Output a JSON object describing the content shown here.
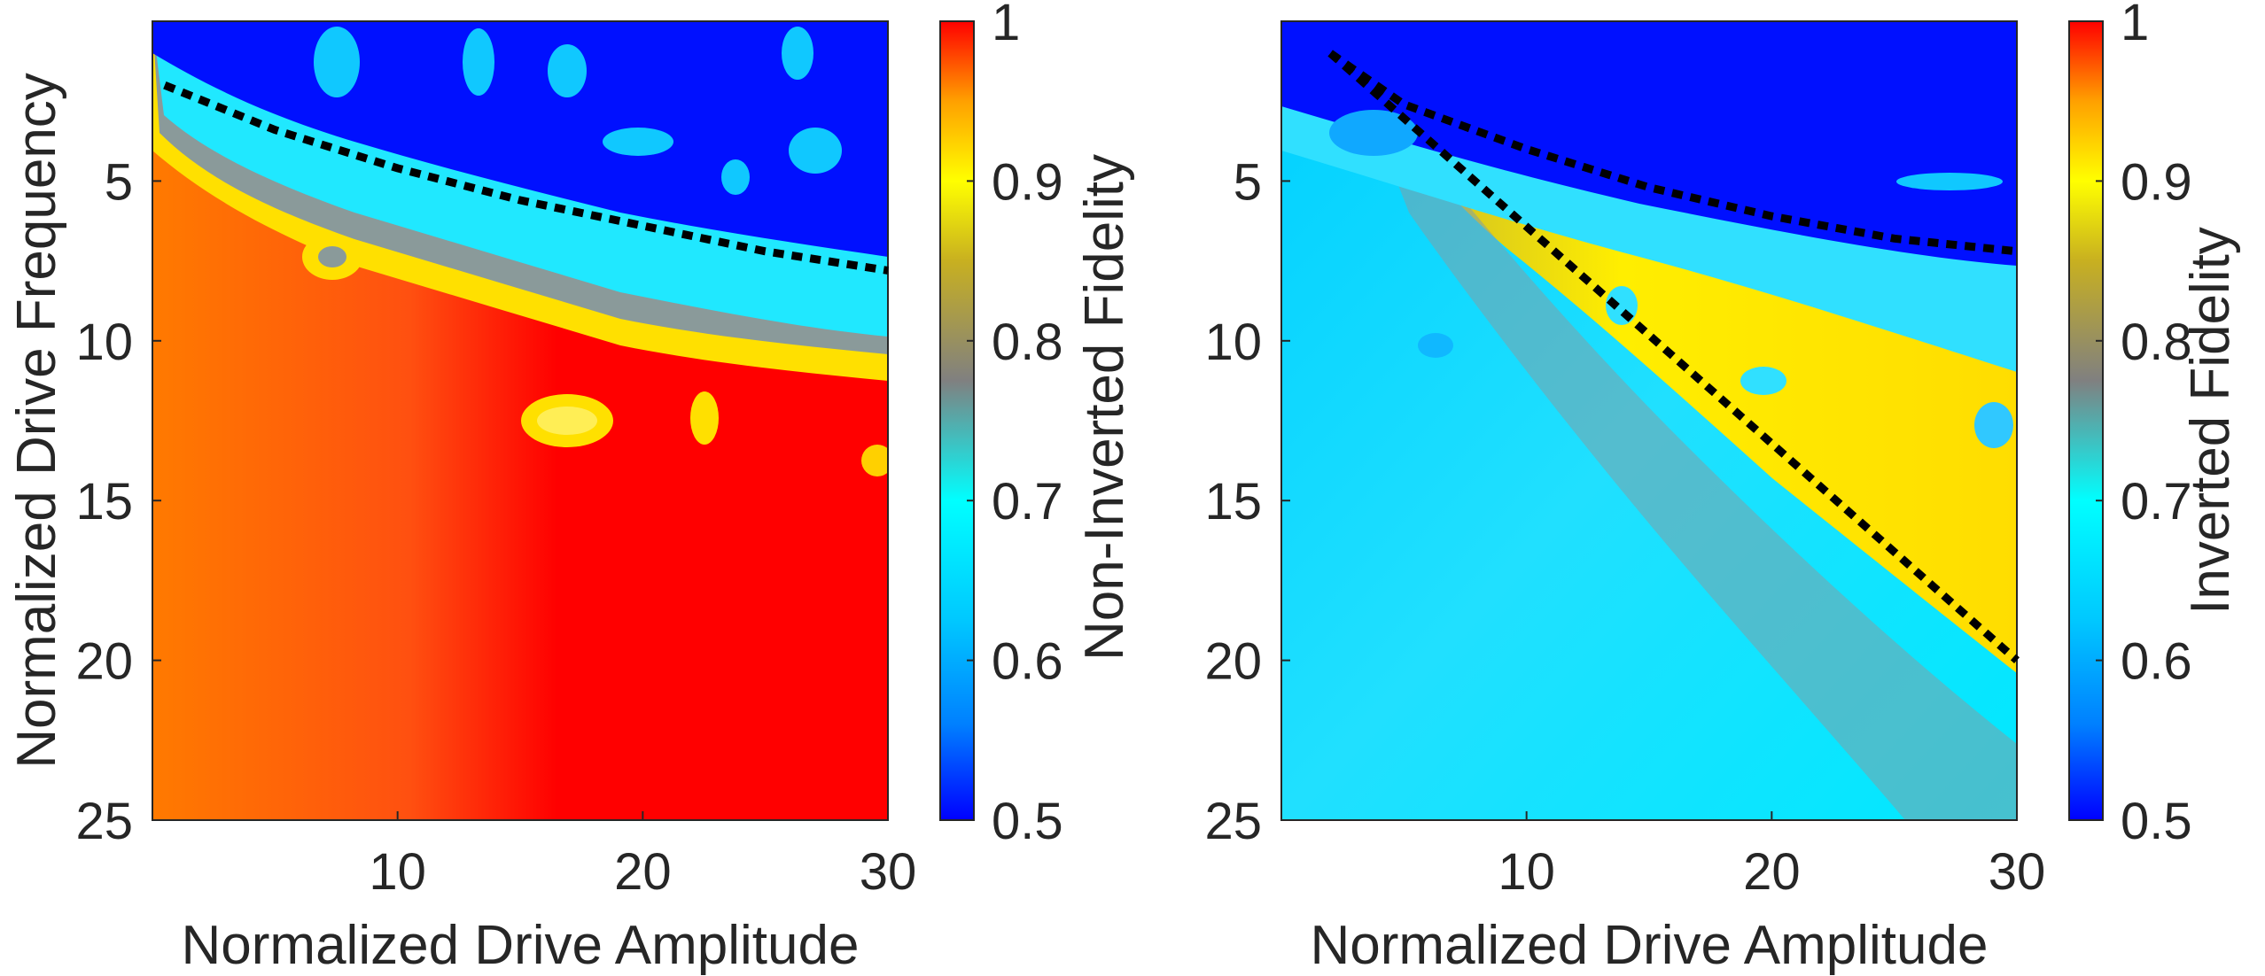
{
  "chart_data": [
    {
      "type": "heatmap",
      "title": "",
      "xlabel": "Normalized Drive Amplitude",
      "ylabel": "Normalized Drive Frequency",
      "xlim": [
        0,
        30
      ],
      "ylim": [
        25,
        0
      ],
      "y_direction": "reversed",
      "xticks": [
        10,
        20,
        30
      ],
      "yticks": [
        5,
        10,
        15,
        20,
        25
      ],
      "colorbar": {
        "label": "Non-Inverted Fidelity",
        "range": [
          0.5,
          1.0
        ],
        "ticks": [
          0.5,
          0.6,
          0.7,
          0.8,
          0.9,
          1
        ]
      },
      "regions": [
        {
          "name": "low fidelity (blue)",
          "fidelity": 0.52,
          "description": "above boundary, small frequency"
        },
        {
          "name": "transition band",
          "fidelity": 0.75
        },
        {
          "name": "high fidelity (red)",
          "fidelity": 0.99
        },
        {
          "name": "left edge (orange)",
          "fidelity": 0.95
        }
      ],
      "dashed_lines": [
        {
          "points": [
            [
              0.5,
              2.0
            ],
            [
              5,
              3.4
            ],
            [
              10,
              4.6
            ],
            [
              15,
              5.6
            ],
            [
              20,
              6.4
            ],
            [
              25,
              7.2
            ],
            [
              30,
              7.8
            ]
          ]
        }
      ]
    },
    {
      "type": "heatmap",
      "title": "",
      "xlabel": "Normalized Drive Amplitude",
      "ylabel": "",
      "xlim": [
        0,
        30
      ],
      "ylim": [
        25,
        0
      ],
      "y_direction": "reversed",
      "xticks": [
        10,
        20,
        30
      ],
      "yticks": [
        5,
        10,
        15,
        20,
        25
      ],
      "colorbar": {
        "label": "Inverted Fidelity",
        "range": [
          0.5,
          1.0
        ],
        "ticks": [
          0.5,
          0.6,
          0.7,
          0.8,
          0.9,
          1
        ]
      },
      "regions": [
        {
          "name": "low fidelity (blue)",
          "fidelity": 0.52
        },
        {
          "name": "left wedge (cyan)",
          "fidelity": 0.64
        },
        {
          "name": "right wedge (yellow)",
          "fidelity": 0.88
        }
      ],
      "dashed_lines": [
        {
          "points": [
            [
              2,
              1.0
            ],
            [
              5,
              2.6
            ],
            [
              10,
              4.0
            ],
            [
              15,
              5.2
            ],
            [
              20,
              6.1
            ],
            [
              25,
              6.8
            ],
            [
              30,
              7.2
            ]
          ]
        },
        {
          "points": [
            [
              2,
              1.0
            ],
            [
              30,
              20.0
            ]
          ]
        }
      ]
    }
  ]
}
